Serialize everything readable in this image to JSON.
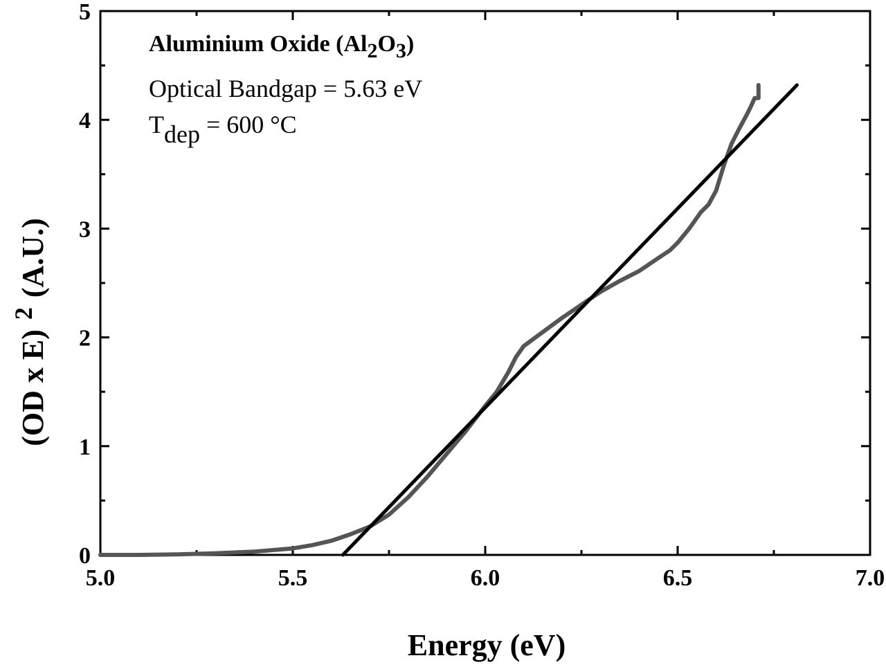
{
  "chart_data": {
    "type": "line",
    "xlabel": "Energy (eV)",
    "ylabel": {
      "main": "(OD x E)",
      "sup": "2",
      "unit": "(A.U.)"
    },
    "xlim": [
      5.0,
      7.0
    ],
    "ylim": [
      0,
      5
    ],
    "xticks": [
      5.0,
      5.5,
      6.0,
      6.5,
      7.0
    ],
    "xtick_labels": [
      "5.0",
      "5.5",
      "6.0",
      "6.5",
      "7.0"
    ],
    "yticks": [
      0,
      1,
      2,
      3,
      4,
      5
    ],
    "ytick_labels": [
      "0",
      "1",
      "2",
      "3",
      "4",
      "5"
    ],
    "grid": false,
    "annotations": {
      "title": {
        "prefix": "Aluminium Oxide (Al",
        "sub1": "2",
        "mid": "O",
        "sub2": "3",
        "suffix": ")"
      },
      "bandgap": "Optical Bandgap = 5.63 eV",
      "tdep": {
        "main": "T",
        "sub": "dep",
        "rest": " = 600 °C"
      }
    },
    "series": [
      {
        "style": "measured",
        "color": "#555555",
        "x": [
          5.0,
          5.1,
          5.2,
          5.3,
          5.4,
          5.45,
          5.5,
          5.55,
          5.6,
          5.65,
          5.7,
          5.75,
          5.8,
          5.85,
          5.9,
          5.95,
          6.0,
          6.03,
          6.06,
          6.08,
          6.1,
          6.15,
          6.2,
          6.25,
          6.3,
          6.35,
          6.4,
          6.45,
          6.48,
          6.5,
          6.53,
          6.56,
          6.58,
          6.6,
          6.62,
          6.64,
          6.66,
          6.68,
          6.69,
          6.7,
          6.71,
          6.71
        ],
        "y": [
          0.0,
          0.0,
          0.005,
          0.015,
          0.03,
          0.045,
          0.06,
          0.09,
          0.13,
          0.19,
          0.26,
          0.37,
          0.53,
          0.72,
          0.93,
          1.14,
          1.37,
          1.5,
          1.68,
          1.82,
          1.92,
          2.05,
          2.18,
          2.3,
          2.42,
          2.52,
          2.61,
          2.73,
          2.8,
          2.87,
          3.0,
          3.15,
          3.22,
          3.35,
          3.58,
          3.78,
          3.92,
          4.05,
          4.12,
          4.2,
          4.2,
          4.32
        ]
      },
      {
        "style": "linear-fit",
        "color": "#000000",
        "x": [
          5.63,
          6.81
        ],
        "y": [
          0.0,
          4.32
        ]
      }
    ]
  }
}
